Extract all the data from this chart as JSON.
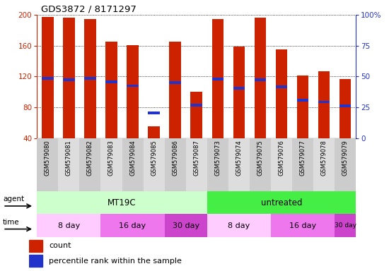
{
  "title": "GDS3872 / 8171297",
  "samples": [
    "GSM579080",
    "GSM579081",
    "GSM579082",
    "GSM579083",
    "GSM579084",
    "GSM579085",
    "GSM579086",
    "GSM579087",
    "GSM579073",
    "GSM579074",
    "GSM579075",
    "GSM579076",
    "GSM579077",
    "GSM579078",
    "GSM579079"
  ],
  "red_values": [
    197,
    196,
    195,
    165,
    161,
    55,
    165,
    100,
    195,
    159,
    196,
    155,
    121,
    127,
    117
  ],
  "blue_values": [
    118,
    116,
    118,
    113,
    108,
    73,
    112,
    83,
    117,
    105,
    116,
    107,
    89,
    87,
    82
  ],
  "ylim_left": [
    40,
    200
  ],
  "ylim_right": [
    0,
    100
  ],
  "yticks_left": [
    40,
    80,
    120,
    160,
    200
  ],
  "yticks_right": [
    0,
    25,
    50,
    75,
    100
  ],
  "bar_color": "#cc2200",
  "blue_color": "#2233cc",
  "agent_groups": [
    {
      "label": "MT19C",
      "start": 0,
      "end": 8,
      "color": "#ccffcc"
    },
    {
      "label": "untreated",
      "start": 8,
      "end": 15,
      "color": "#44ee44"
    }
  ],
  "time_groups": [
    {
      "label": "8 day",
      "start": 0,
      "end": 3,
      "color": "#ffccff"
    },
    {
      "label": "16 day",
      "start": 3,
      "end": 6,
      "color": "#ee88ee"
    },
    {
      "label": "30 day",
      "start": 6,
      "end": 8,
      "color": "#dd44dd"
    },
    {
      "label": "8 day",
      "start": 8,
      "end": 11,
      "color": "#ffccff"
    },
    {
      "label": "16 day",
      "start": 11,
      "end": 14,
      "color": "#ee88ee"
    },
    {
      "label": "30 day",
      "start": 14,
      "end": 15,
      "color": "#dd44dd"
    }
  ],
  "tick_label_color_left": "#cc2200",
  "tick_label_color_right": "#2233cc",
  "bar_width": 0.55
}
